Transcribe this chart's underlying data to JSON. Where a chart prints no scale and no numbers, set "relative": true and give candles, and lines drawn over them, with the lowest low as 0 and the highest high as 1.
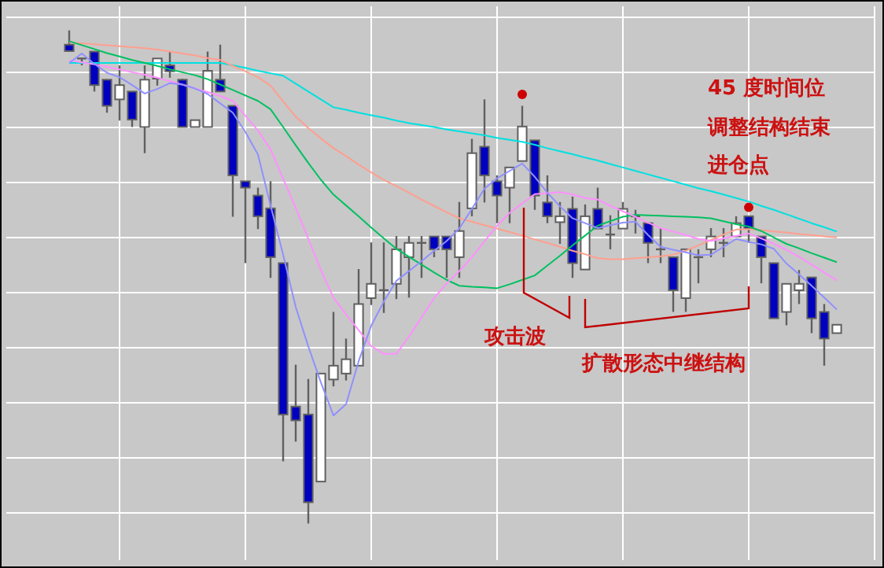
{
  "chart_data": {
    "type": "candlestick",
    "relative": true,
    "grid": true,
    "categories": [
      null,
      null,
      null,
      null,
      null,
      null,
      null,
      null,
      null,
      null,
      null,
      null,
      null,
      null,
      null,
      null,
      null,
      null,
      null,
      null,
      null,
      null,
      null,
      null,
      null,
      null,
      null,
      null,
      null,
      null,
      null,
      null,
      null,
      null,
      null,
      null,
      null,
      null,
      null,
      null,
      null,
      null,
      null,
      null,
      null,
      null,
      null,
      null,
      null,
      null,
      null,
      null,
      null,
      null,
      null,
      null,
      null,
      null,
      null,
      null,
      null,
      null
    ],
    "ohlc": [
      [
        0.971,
        1,
        0.958,
        0.958
      ],
      [
        0.943,
        0.943,
        0.929,
        0.943
      ],
      [
        0.957,
        0.957,
        0.876,
        0.889
      ],
      [
        0.9,
        0.9,
        0.833,
        0.847
      ],
      [
        0.86,
        0.929,
        0.817,
        0.889
      ],
      [
        0.876,
        0.876,
        0.804,
        0.819
      ],
      [
        0.804,
        0.929,
        0.751,
        0.9
      ],
      [
        0.902,
        0.943,
        0.888,
        0.943
      ],
      [
        0.929,
        0.957,
        0.904,
        0.917
      ],
      [
        0.9,
        0.902,
        0.804,
        0.804
      ],
      [
        0.804,
        0.818,
        0.804,
        0.818
      ],
      [
        0.804,
        0.957,
        0.804,
        0.918
      ],
      [
        0.9,
        0.971,
        0.876,
        0.876
      ],
      [
        0.847,
        0.847,
        0.622,
        0.706
      ],
      [
        0.694,
        0.694,
        0.528,
        0.681
      ],
      [
        0.665,
        0.681,
        0.597,
        0.623
      ],
      [
        0.639,
        0.694,
        0.498,
        0.54
      ],
      [
        0.528,
        0.528,
        0.126,
        0.221
      ],
      [
        0.237,
        0.322,
        0.166,
        0.209
      ],
      [
        0.221,
        0.293,
        0,
        0.043
      ],
      [
        0.085,
        0.304,
        0.085,
        0.304
      ],
      [
        0.292,
        0.429,
        0.278,
        0.32
      ],
      [
        0.304,
        0.375,
        0.29,
        0.333
      ],
      [
        0.32,
        0.516,
        0.32,
        0.445
      ],
      [
        0.457,
        0.57,
        0.443,
        0.486
      ],
      [
        0.473,
        0.57,
        0.427,
        0.473
      ],
      [
        0.486,
        0.583,
        0.455,
        0.556
      ],
      [
        0.54,
        0.583,
        0.458,
        0.569
      ],
      [
        0.569,
        0.583,
        0.498,
        0.569
      ],
      [
        0.582,
        0.582,
        0.54,
        0.556
      ],
      [
        0.582,
        0.582,
        0.498,
        0.556
      ],
      [
        0.54,
        0.652,
        0.498,
        0.593
      ],
      [
        0.639,
        0.78,
        0.623,
        0.751
      ],
      [
        0.764,
        0.86,
        0.651,
        0.706
      ],
      [
        0.694,
        0.706,
        0.609,
        0.665
      ],
      [
        0.681,
        0.722,
        0.609,
        0.722
      ],
      [
        0.735,
        0.847,
        0.735,
        0.805
      ],
      [
        0.777,
        0.777,
        0.636,
        0.665
      ],
      [
        0.651,
        0.706,
        0.609,
        0.623
      ],
      [
        0.611,
        0.652,
        0.567,
        0.623
      ],
      [
        0.638,
        0.663,
        0.498,
        0.528
      ],
      [
        0.515,
        0.647,
        0.515,
        0.623
      ],
      [
        0.638,
        0.681,
        0.598,
        0.598
      ],
      [
        0.586,
        0.625,
        0.556,
        0.586
      ],
      [
        0.598,
        0.652,
        0.598,
        0.638
      ],
      [
        0.623,
        0.636,
        0.588,
        0.623
      ],
      [
        0.609,
        0.609,
        0.528,
        0.569
      ],
      [
        0.556,
        0.599,
        0.528,
        0.556
      ],
      [
        0.54,
        0.54,
        0.429,
        0.473
      ],
      [
        0.457,
        0.556,
        0.429,
        0.556
      ],
      [
        0.54,
        0.556,
        0.487,
        0.54
      ],
      [
        0.556,
        0.599,
        0.54,
        0.582
      ],
      [
        0.569,
        0.599,
        0.54,
        0.569
      ],
      [
        0.582,
        0.623,
        0.582,
        0.609
      ],
      [
        0.623,
        0.623,
        0.569,
        0.598
      ],
      [
        0.582,
        0.582,
        0.487,
        0.54
      ],
      [
        0.528,
        0.528,
        0.416,
        0.416
      ],
      [
        0.429,
        0.486,
        0.402,
        0.486
      ],
      [
        0.473,
        0.514,
        0.445,
        0.486
      ],
      [
        0.499,
        0.499,
        0.386,
        0.416
      ],
      [
        0.429,
        0.445,
        0.32,
        0.375
      ],
      [
        0.386,
        0.403,
        0.386,
        0.403
      ]
    ],
    "series": [
      {
        "type": "line",
        "color": "#00e0e0",
        "values": [
          0.934,
          0.934,
          0.934,
          0.934,
          0.934,
          0.934,
          0.934,
          0.934,
          0.934,
          0.934,
          0.934,
          0.934,
          0.934,
          0.929,
          0.924,
          0.918,
          0.913,
          0.908,
          0.892,
          0.876,
          0.86,
          0.844,
          0.839,
          0.833,
          0.828,
          0.823,
          0.817,
          0.812,
          0.808,
          0.804,
          0.799,
          0.795,
          0.791,
          0.787,
          0.782,
          0.778,
          0.774,
          0.768,
          0.761,
          0.755,
          0.749,
          0.742,
          0.736,
          0.729,
          0.722,
          0.715,
          0.708,
          0.701,
          0.694,
          0.687,
          0.68,
          0.674,
          0.667,
          0.66,
          0.653,
          0.644,
          0.636,
          0.627,
          0.618,
          0.609,
          0.601,
          0.592
        ]
      },
      {
        "type": "line",
        "color": "#ff9f8f",
        "values": [
          0.976,
          0.974,
          0.972,
          0.97,
          0.968,
          0.966,
          0.964,
          0.961,
          0.957,
          0.953,
          0.949,
          0.944,
          0.94,
          0.928,
          0.917,
          0.905,
          0.888,
          0.856,
          0.825,
          0.802,
          0.781,
          0.761,
          0.745,
          0.728,
          0.712,
          0.697,
          0.684,
          0.671,
          0.657,
          0.644,
          0.631,
          0.619,
          0.612,
          0.605,
          0.598,
          0.591,
          0.584,
          0.576,
          0.569,
          0.561,
          0.553,
          0.546,
          0.538,
          0.536,
          0.536,
          0.538,
          0.54,
          0.542,
          0.545,
          0.553,
          0.564,
          0.575,
          0.586,
          0.596,
          0.597,
          0.595,
          0.592,
          0.59,
          0.587,
          0.585,
          0.582,
          0.58
        ]
      },
      {
        "type": "line",
        "color": "#00c060",
        "values": [
          0.978,
          0.97,
          0.962,
          0.954,
          0.947,
          0.94,
          0.934,
          0.928,
          0.921,
          0.915,
          0.909,
          0.901,
          0.89,
          0.879,
          0.868,
          0.857,
          0.84,
          0.804,
          0.767,
          0.731,
          0.697,
          0.667,
          0.645,
          0.623,
          0.6,
          0.578,
          0.557,
          0.541,
          0.525,
          0.509,
          0.494,
          0.482,
          0.48,
          0.479,
          0.477,
          0.485,
          0.494,
          0.503,
          0.523,
          0.543,
          0.564,
          0.584,
          0.604,
          0.613,
          0.622,
          0.626,
          0.625,
          0.624,
          0.623,
          0.622,
          0.621,
          0.619,
          0.613,
          0.607,
          0.602,
          0.593,
          0.58,
          0.567,
          0.558,
          0.548,
          0.539,
          0.53
        ]
      },
      {
        "type": "line",
        "color": "#ff90ff",
        "values": [
          0.939,
          0.935,
          0.931,
          0.926,
          0.921,
          0.915,
          0.91,
          0.904,
          0.897,
          0.89,
          0.882,
          0.875,
          0.867,
          0.857,
          0.827,
          0.797,
          0.759,
          0.699,
          0.64,
          0.577,
          0.514,
          0.458,
          0.424,
          0.392,
          0.36,
          0.344,
          0.344,
          0.379,
          0.418,
          0.457,
          0.487,
          0.512,
          0.54,
          0.572,
          0.604,
          0.63,
          0.649,
          0.668,
          0.67,
          0.672,
          0.667,
          0.66,
          0.657,
          0.644,
          0.633,
          0.622,
          0.61,
          0.599,
          0.592,
          0.585,
          0.577,
          0.573,
          0.578,
          0.583,
          0.588,
          0.578,
          0.567,
          0.555,
          0.541,
          0.525,
          0.509,
          0.493
        ]
      },
      {
        "type": "line",
        "color": "#9090ff",
        "values": [
          0.934,
          0.953,
          0.932,
          0.914,
          0.905,
          0.889,
          0.872,
          0.881,
          0.893,
          0.89,
          0.882,
          0.871,
          0.852,
          0.833,
          0.794,
          0.748,
          0.645,
          0.545,
          0.439,
          0.359,
          0.286,
          0.219,
          0.242,
          0.329,
          0.401,
          0.45,
          0.492,
          0.512,
          0.532,
          0.553,
          0.573,
          0.598,
          0.638,
          0.679,
          0.7,
          0.715,
          0.73,
          0.703,
          0.671,
          0.643,
          0.619,
          0.609,
          0.599,
          0.605,
          0.61,
          0.612,
          0.585,
          0.561,
          0.555,
          0.55,
          0.544,
          0.545,
          0.561,
          0.577,
          0.571,
          0.566,
          0.557,
          0.527,
          0.505,
          0.482,
          0.458,
          0.434
        ]
      },
      {
        "type": "scatter",
        "color": "#cc0000",
        "marker": "circle",
        "values": [
          null,
          null,
          null,
          null,
          null,
          null,
          null,
          null,
          null,
          null,
          null,
          null,
          null,
          null,
          null,
          null,
          null,
          null,
          null,
          null,
          null,
          null,
          null,
          null,
          null,
          null,
          null,
          null,
          null,
          null,
          null,
          null,
          null,
          null,
          null,
          null,
          0.87,
          null,
          null,
          null,
          null,
          null,
          null,
          null,
          null,
          null,
          null,
          null,
          null,
          null,
          null,
          null,
          null,
          null,
          0.641,
          null,
          null,
          null,
          null,
          null,
          null,
          null
        ]
      }
    ],
    "annotations": [
      "45 度时间位",
      "调整结构结束",
      "进仓点",
      "攻击波",
      "扩散形态中继结构"
    ]
  }
}
